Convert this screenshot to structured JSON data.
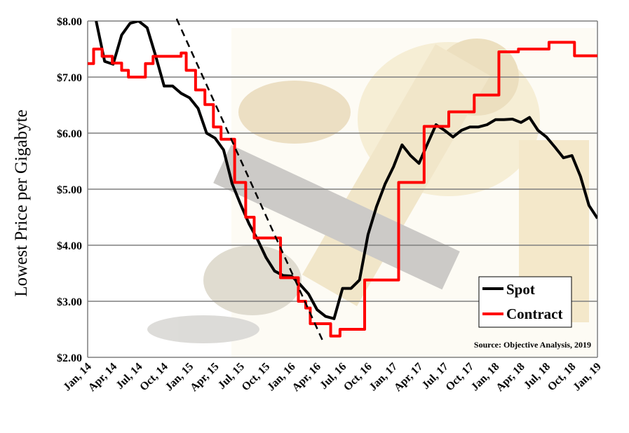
{
  "chart_data": {
    "type": "line",
    "title": "",
    "ylabel": "Lowest Price per Gigabyte",
    "xlabel": "",
    "ylim": [
      2,
      8
    ],
    "xlim": [
      "2014-01-01",
      "2019-01-01"
    ],
    "grid": true,
    "legend_placement": "bottom-right",
    "y_ticks": [
      "$2.00",
      "$3.00",
      "$4.00",
      "$5.00",
      "$6.00",
      "$7.00",
      "$8.00"
    ],
    "x_ticks": [
      "Jan, 14",
      "Apr, 14",
      "Jul, 14",
      "Oct, 14",
      "Jan, 15",
      "Apr, 15",
      "Jul, 15",
      "Oct, 15",
      "Jan, 16",
      "Apr, 16",
      "Jul, 16",
      "Oct, 16",
      "Jan, 17",
      "Apr, 17",
      "Jul, 17",
      "Oct, 17",
      "Jan, 18",
      "Apr, 18",
      "Jul, 18",
      "Oct, 18",
      "Jan, 19"
    ],
    "annotation": "Source: Objective Analysis, 2019",
    "colors": {
      "spot": "#000000",
      "contract": "#ff0000",
      "grid": "#7f7f7f"
    },
    "series": [
      {
        "name": "Spot",
        "style": "line",
        "points": [
          [
            "2014-02-01",
            8.0
          ],
          [
            "2014-03-01",
            7.28
          ],
          [
            "2014-04-01",
            7.23
          ],
          [
            "2014-05-01",
            7.75
          ],
          [
            "2014-06-01",
            7.96
          ],
          [
            "2014-07-01",
            8.0
          ],
          [
            "2014-08-01",
            7.88
          ],
          [
            "2014-09-01",
            7.38
          ],
          [
            "2014-10-01",
            6.84
          ],
          [
            "2014-11-01",
            6.84
          ],
          [
            "2014-12-01",
            6.71
          ],
          [
            "2015-01-01",
            6.63
          ],
          [
            "2015-02-01",
            6.44
          ],
          [
            "2015-03-01",
            6.0
          ],
          [
            "2015-04-01",
            5.91
          ],
          [
            "2015-05-01",
            5.7
          ],
          [
            "2015-06-01",
            5.1
          ],
          [
            "2015-07-01",
            4.73
          ],
          [
            "2015-08-01",
            4.38
          ],
          [
            "2015-09-01",
            4.1
          ],
          [
            "2015-10-01",
            3.78
          ],
          [
            "2015-11-01",
            3.54
          ],
          [
            "2015-12-01",
            3.46
          ],
          [
            "2016-01-01",
            3.45
          ],
          [
            "2016-02-01",
            3.3
          ],
          [
            "2016-03-01",
            3.13
          ],
          [
            "2016-04-01",
            2.85
          ],
          [
            "2016-05-01",
            2.73
          ],
          [
            "2016-06-01",
            2.69
          ],
          [
            "2016-07-01",
            3.23
          ],
          [
            "2016-08-01",
            3.23
          ],
          [
            "2016-09-01",
            3.38
          ],
          [
            "2016-10-01",
            4.19
          ],
          [
            "2016-11-01",
            4.69
          ],
          [
            "2016-12-01",
            5.09
          ],
          [
            "2017-01-01",
            5.4
          ],
          [
            "2017-02-01",
            5.79
          ],
          [
            "2017-03-01",
            5.6
          ],
          [
            "2017-04-01",
            5.46
          ],
          [
            "2017-05-01",
            5.81
          ],
          [
            "2017-06-01",
            6.15
          ],
          [
            "2017-07-01",
            6.05
          ],
          [
            "2017-08-01",
            5.93
          ],
          [
            "2017-09-01",
            6.05
          ],
          [
            "2017-10-01",
            6.11
          ],
          [
            "2017-11-01",
            6.11
          ],
          [
            "2017-12-01",
            6.15
          ],
          [
            "2018-01-01",
            6.24
          ],
          [
            "2018-02-01",
            6.24
          ],
          [
            "2018-03-01",
            6.25
          ],
          [
            "2018-04-01",
            6.19
          ],
          [
            "2018-05-01",
            6.28
          ],
          [
            "2018-06-01",
            6.05
          ],
          [
            "2018-07-01",
            5.93
          ],
          [
            "2018-08-01",
            5.75
          ],
          [
            "2018-09-01",
            5.56
          ],
          [
            "2018-10-01",
            5.6
          ],
          [
            "2018-11-01",
            5.23
          ],
          [
            "2018-12-01",
            4.71
          ],
          [
            "2019-01-01",
            4.48
          ]
        ]
      },
      {
        "name": "Contract",
        "style": "step",
        "points": [
          [
            "2014-01-01",
            7.24
          ],
          [
            "2014-01-22",
            7.5
          ],
          [
            "2014-02-22",
            7.37
          ],
          [
            "2014-03-28",
            7.25
          ],
          [
            "2014-05-01",
            7.12
          ],
          [
            "2014-05-25",
            7.0
          ],
          [
            "2014-07-25",
            7.24
          ],
          [
            "2014-08-22",
            7.37
          ],
          [
            "2014-12-01",
            7.43
          ],
          [
            "2014-12-19",
            7.12
          ],
          [
            "2015-01-22",
            6.77
          ],
          [
            "2015-02-25",
            6.51
          ],
          [
            "2015-03-25",
            6.11
          ],
          [
            "2015-04-22",
            5.89
          ],
          [
            "2015-06-10",
            5.12
          ],
          [
            "2015-07-19",
            4.5
          ],
          [
            "2015-08-19",
            4.13
          ],
          [
            "2015-11-22",
            3.42
          ],
          [
            "2016-01-25",
            3.0
          ],
          [
            "2016-02-21",
            2.88
          ],
          [
            "2016-03-07",
            2.6
          ],
          [
            "2016-05-19",
            2.38
          ],
          [
            "2016-06-22",
            2.5
          ],
          [
            "2016-09-19",
            3.38
          ],
          [
            "2017-01-19",
            5.12
          ],
          [
            "2017-04-19",
            6.12
          ],
          [
            "2017-07-16",
            6.38
          ],
          [
            "2017-10-16",
            6.68
          ],
          [
            "2018-01-13",
            7.45
          ],
          [
            "2018-03-22",
            7.5
          ],
          [
            "2018-07-10",
            7.62
          ],
          [
            "2018-10-10",
            7.38
          ],
          [
            "2019-01-01",
            7.38
          ]
        ]
      }
    ],
    "trend_line": {
      "style": "dashed",
      "points": [
        [
          "2014-11-15",
          8.04
        ],
        [
          "2016-04-25",
          2.25
        ]
      ]
    }
  }
}
